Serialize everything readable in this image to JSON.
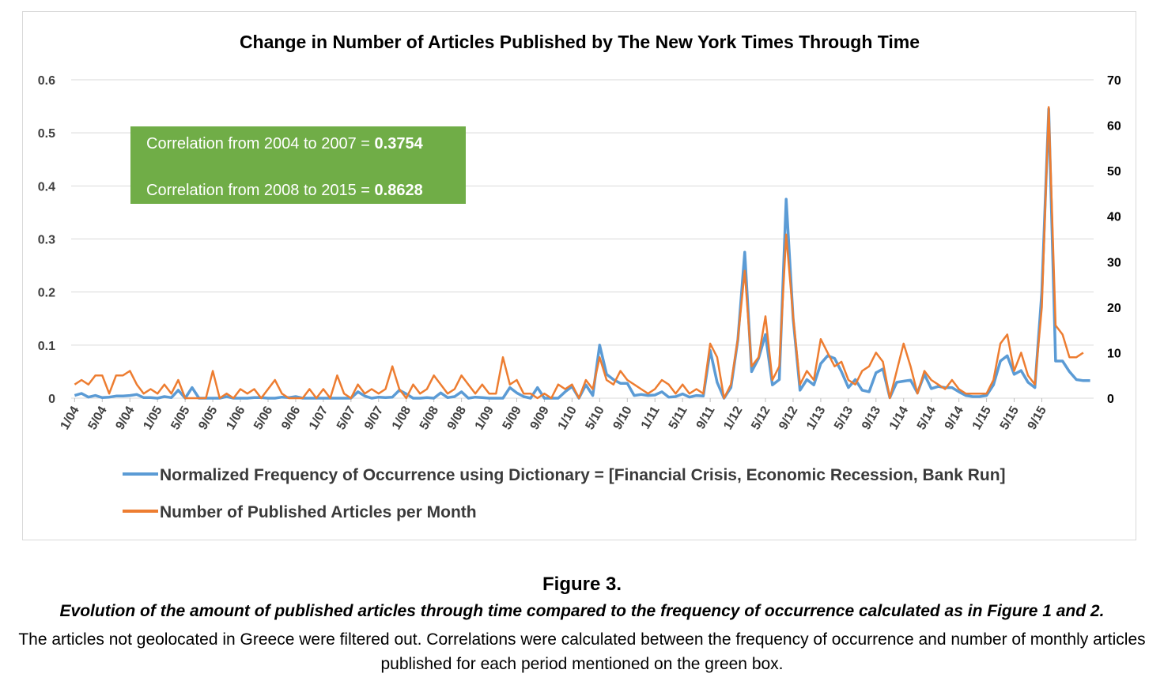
{
  "chart_data": {
    "type": "line",
    "title": "Change in Number of Articles Published by The New York Times Through Time",
    "xlabel": "",
    "ylabel_left": "",
    "ylabel_right": "",
    "ylim_left": [
      0,
      0.6
    ],
    "ylim_right": [
      0,
      70
    ],
    "yticks_left": [
      "0",
      "0.1",
      "0.2",
      "0.3",
      "0.4",
      "0.5",
      "0.6"
    ],
    "yticks_right": [
      "0",
      "10",
      "20",
      "30",
      "40",
      "50",
      "60",
      "70"
    ],
    "grid": "horizontal",
    "legend_position": "bottom",
    "x_tick_labels": [
      "1/04",
      "5/04",
      "9/04",
      "1/05",
      "5/05",
      "9/05",
      "1/06",
      "5/06",
      "9/06",
      "1/07",
      "5/07",
      "9/07",
      "1/08",
      "5/08",
      "9/08",
      "1/09",
      "5/09",
      "9/09",
      "1/10",
      "5/10",
      "9/10",
      "1/11",
      "5/11",
      "9/11",
      "1/12",
      "5/12",
      "9/12",
      "1/13",
      "5/13",
      "9/13",
      "1/14",
      "5/14",
      "9/14",
      "1/15",
      "5/15",
      "9/15"
    ],
    "x_start": "2004-01",
    "x_end": "2015-12",
    "series": [
      {
        "name": "Normalized Frequency of Occurrence using Dictionary = [Financial Crisis, Economic Recession, Bank Run]",
        "axis": "left",
        "color": "#5b9bd5",
        "values": [
          0.005,
          0.009,
          0.002,
          0.005,
          0.001,
          0.002,
          0.004,
          0.004,
          0.005,
          0.007,
          0.001,
          0.001,
          0,
          0.003,
          0.001,
          0.015,
          0,
          0.02,
          0,
          0,
          0,
          0,
          0.003,
          0,
          0,
          0,
          0.001,
          0.001,
          0,
          0,
          0.002,
          0.001,
          0.003,
          0,
          0,
          0,
          0,
          0,
          0,
          0,
          0,
          0.012,
          0.004,
          0,
          0.002,
          0.001,
          0.002,
          0.015,
          0.008,
          0,
          0,
          0.001,
          0,
          0.01,
          0.001,
          0.003,
          0.012,
          0,
          0.002,
          0.001,
          0,
          0,
          0,
          0.02,
          0.01,
          0.003,
          0,
          0.02,
          0,
          0,
          0,
          0.012,
          0.022,
          0,
          0.025,
          0.005,
          0.1,
          0.045,
          0.035,
          0.028,
          0.028,
          0.005,
          0.007,
          0.005,
          0.006,
          0.012,
          0.002,
          0.003,
          0.008,
          0.002,
          0.005,
          0.004,
          0.09,
          0.03,
          0,
          0.02,
          0.11,
          0.275,
          0.05,
          0.075,
          0.12,
          0.025,
          0.035,
          0.375,
          0.15,
          0.015,
          0.035,
          0.025,
          0.065,
          0.08,
          0.075,
          0.05,
          0.02,
          0.035,
          0.015,
          0.012,
          0.048,
          0.055,
          0.001,
          0.03,
          0.032,
          0.034,
          0.01,
          0.045,
          0.018,
          0.022,
          0.02,
          0.02,
          0.012,
          0.005,
          0.003,
          0.003,
          0.005,
          0.025,
          0.07,
          0.08,
          0.045,
          0.052,
          0.03,
          0.02,
          0.2,
          0.545,
          0.07,
          0.07,
          0.05,
          0.035,
          0.033,
          0.033
        ]
      },
      {
        "name": "Number of Published Articles per Month",
        "axis": "right",
        "color": "#ed7d31",
        "values": [
          3,
          4,
          3,
          5,
          5,
          1,
          5,
          5,
          6,
          3,
          1,
          2,
          1,
          3,
          1,
          4,
          0,
          0,
          0,
          0,
          6,
          0,
          1,
          0,
          2,
          1,
          2,
          0,
          2,
          4,
          1,
          0,
          0,
          0,
          2,
          0,
          2,
          0,
          5,
          1,
          0,
          3,
          1,
          2,
          1,
          2,
          7,
          2,
          0,
          3,
          1,
          2,
          5,
          3,
          1,
          2,
          5,
          3,
          1,
          3,
          1,
          1,
          9,
          3,
          4,
          1,
          1,
          0,
          1,
          0,
          3,
          2,
          3,
          0,
          4,
          2,
          9,
          4,
          3,
          6,
          4,
          3,
          2,
          1,
          2,
          4,
          3,
          1,
          3,
          1,
          2,
          1,
          12,
          9,
          0,
          3,
          13,
          28,
          7,
          9,
          18,
          4,
          7,
          36,
          18,
          3,
          6,
          4,
          13,
          10,
          7,
          8,
          4,
          3,
          6,
          7,
          10,
          8,
          0,
          6,
          12,
          7,
          1,
          6,
          4,
          3,
          2,
          4,
          2,
          1,
          1,
          1,
          1,
          4,
          12,
          14,
          6,
          10,
          5,
          3,
          20,
          64,
          16,
          14,
          9,
          9,
          10
        ]
      }
    ],
    "annotation": {
      "background": "#70ad47",
      "line1_text": "Correlation from 2004 to 2007 = ",
      "line1_value": "0.3754",
      "line2_text": "Correlation from 2008 to 2015 = ",
      "line2_value": "0.8628"
    }
  },
  "caption": {
    "figure_label": "Figure 3.",
    "subtitle": "Evolution of the amount of published articles through time compared to the frequency of occurrence calculated as in Figure 1 and 2.",
    "description": "The articles not geolocated in Greece were filtered out. Correlations were calculated between the frequency of occurrence and number of monthly articles published for each period mentioned on the green box."
  }
}
